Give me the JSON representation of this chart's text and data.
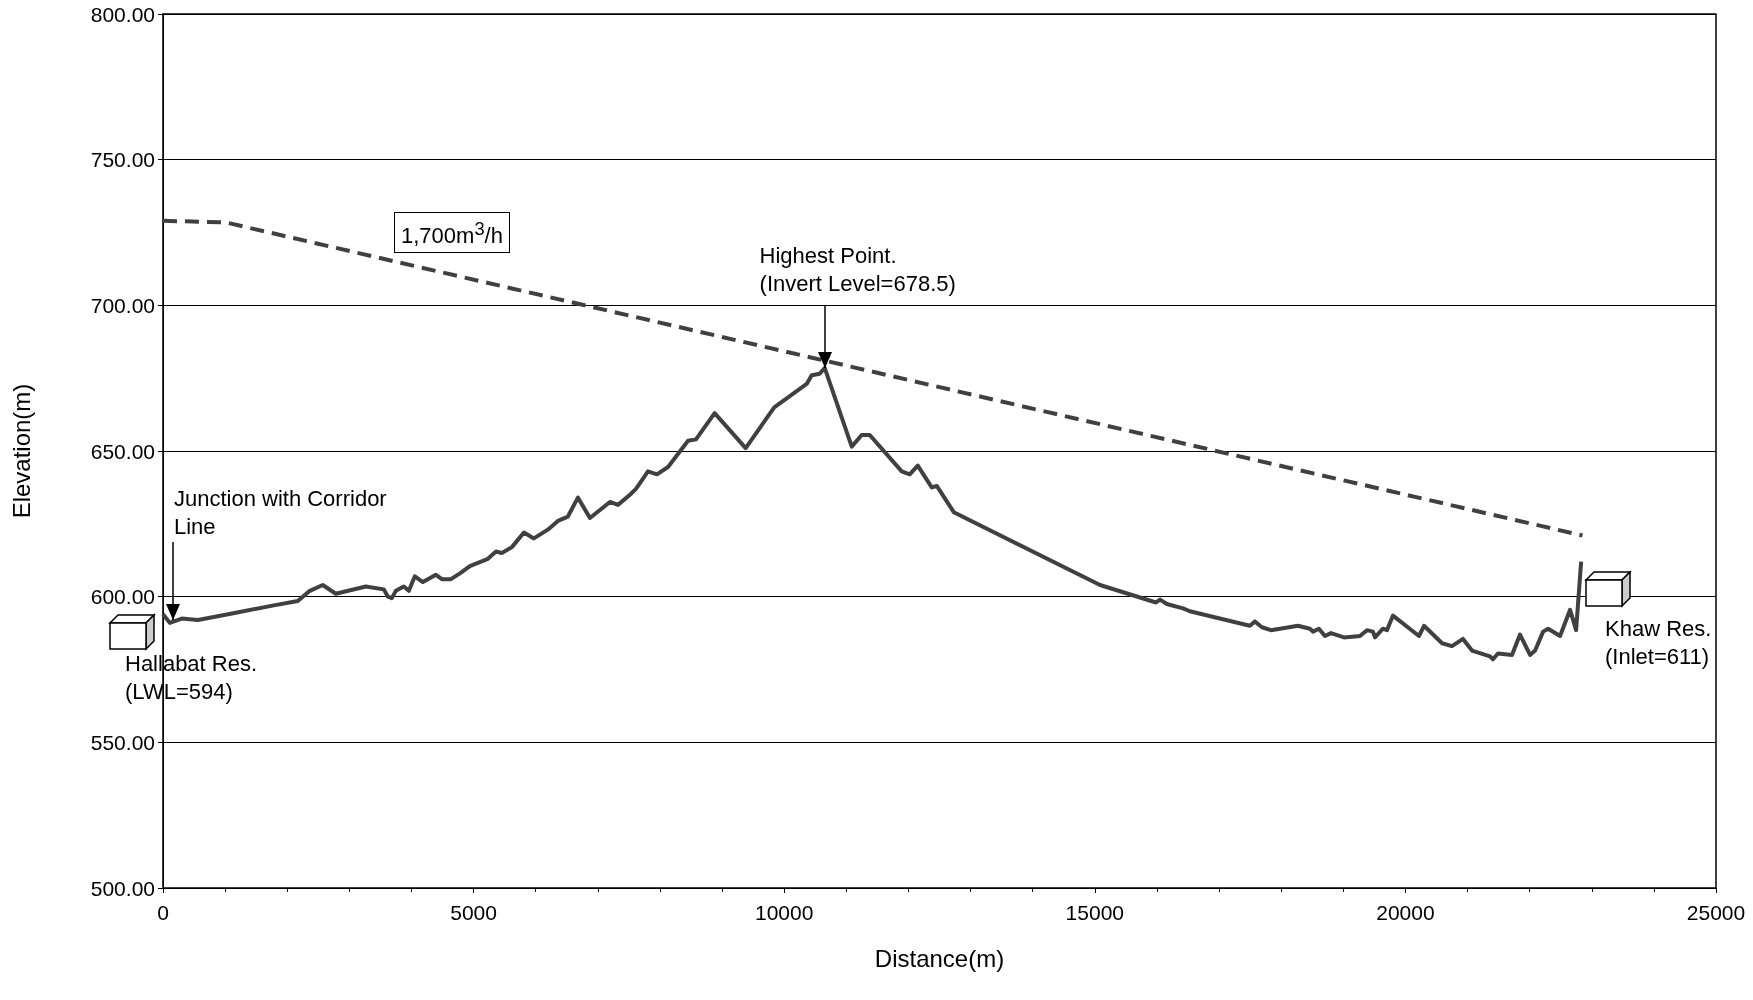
{
  "chart_data": {
    "type": "line",
    "xlabel": "Distance(m)",
    "ylabel": "Elevation(m)",
    "xlim": [
      0,
      25000
    ],
    "xticks": [
      0,
      5000,
      10000,
      15000,
      20000,
      25000
    ],
    "ylim": [
      500,
      800
    ],
    "yticks": [
      {
        "value": 500,
        "label": "500.00"
      },
      {
        "value": 550,
        "label": "550.00"
      },
      {
        "value": 600,
        "label": "600.00"
      },
      {
        "value": 650,
        "label": "650.00"
      },
      {
        "value": 700,
        "label": "700.00"
      },
      {
        "value": 750,
        "label": "750.00"
      },
      {
        "value": 800,
        "label": "800.00"
      }
    ],
    "grid": "y",
    "marker": "none",
    "series": [
      {
        "color": "#404040",
        "line_style": "solid",
        "x": [
          0,
          110,
          303,
          560,
          818,
          1172,
          1784,
          2170,
          2363,
          2572,
          2782,
          3265,
          3555,
          3620,
          3684,
          3748,
          3877,
          3958,
          4054,
          4183,
          4393,
          4490,
          4635,
          4780,
          4940,
          5230,
          5360,
          5455,
          5617,
          5810,
          5970,
          6195,
          6357,
          6518,
          6679,
          6873,
          7195,
          7324,
          7517,
          7614,
          7807,
          7952,
          8130,
          8452,
          8580,
          8880,
          9380,
          9840,
          10362,
          10443,
          10571,
          10652,
          11087,
          11248,
          11377,
          11892,
          12021,
          12150,
          12375,
          12456,
          12730,
          15084,
          15985,
          16050,
          16160,
          16420,
          16530,
          17496,
          17577,
          17690,
          17835,
          18270,
          18463,
          18512,
          18608,
          18705,
          18802,
          19011,
          19269,
          19381,
          19478,
          19510,
          19639,
          19703,
          19800,
          20219,
          20300,
          20590,
          20750,
          20927,
          21072,
          21362,
          21410,
          21490,
          21716,
          21845,
          22007,
          22088,
          22217,
          22298,
          22490,
          22651,
          22748,
          22829
        ],
        "values": [
          594,
          591,
          592.5,
          592,
          593,
          594.5,
          597,
          598.5,
          602,
          604,
          601,
          603.5,
          602.5,
          600,
          599.5,
          602,
          603.5,
          602,
          607,
          605,
          607.5,
          606,
          606,
          608,
          610.5,
          613,
          615.5,
          615,
          617,
          622,
          620,
          623,
          626,
          627.5,
          634,
          627,
          632.5,
          631.5,
          635,
          637,
          643,
          642,
          644.5,
          653.5,
          654,
          663,
          651,
          665,
          673,
          676,
          676.5,
          678.5,
          651.5,
          655.5,
          655.5,
          643,
          642,
          645,
          637.5,
          638,
          629,
          604,
          598,
          599,
          597.5,
          596,
          595,
          590,
          591.5,
          589.5,
          588.5,
          590,
          589,
          588,
          589,
          586.5,
          587.5,
          586,
          586.5,
          588.5,
          588,
          586,
          589,
          588.5,
          593.5,
          586.5,
          590,
          584,
          583,
          585.5,
          581.5,
          579.5,
          578.5,
          580.5,
          580,
          587,
          580,
          581.5,
          588,
          589,
          586.5,
          595.5,
          588.5,
          612
        ]
      },
      {
        "color": "#404040",
        "line_style": "dashed",
        "x": [
          0,
          1000,
          22850
        ],
        "values": [
          729,
          728.5,
          621
        ]
      }
    ],
    "annotations": [
      {
        "text": "Junction with Corridor\nLine",
        "x": 160,
        "y": 592
      },
      {
        "text": "Highest Point.\n(Invert Level=678.5)",
        "x": 10650,
        "y": 678.5
      },
      "Hallabat Res.\n(LWL=594)",
      "Khaw Res.\n(Inlet=611)",
      "1,700m$^{3}$/h"
    ]
  }
}
